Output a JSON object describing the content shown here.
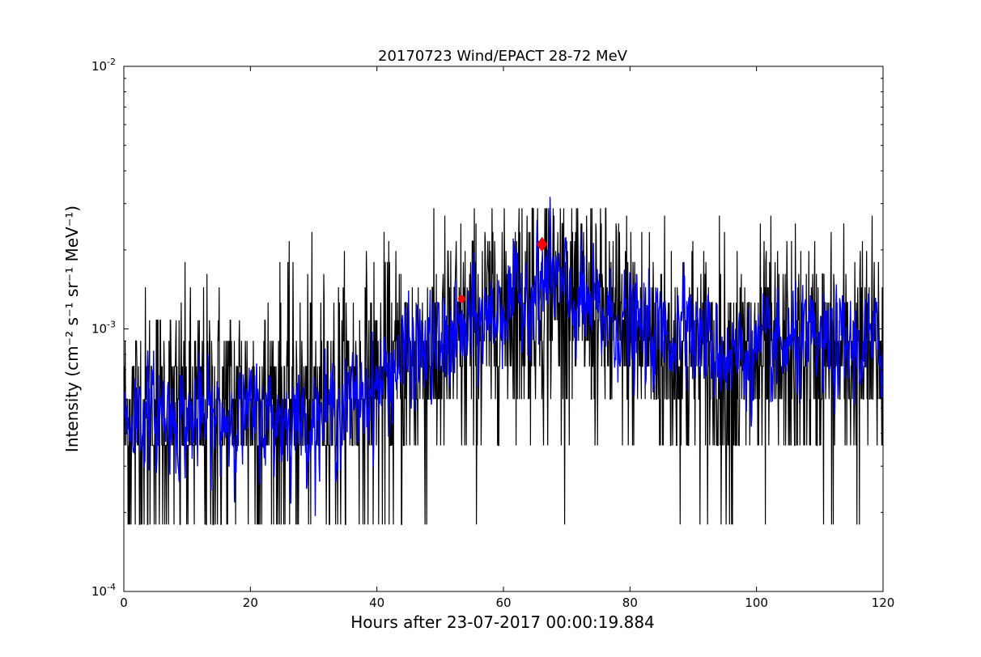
{
  "chart_data": {
    "type": "line",
    "title": "20170723 Wind/EPACT 28-72 MeV",
    "xlabel": "Hours after 23-07-2017 00:00:19.884",
    "ylabel": "Intensity (cm⁻² s⁻¹ sr⁻¹ MeV⁻¹)",
    "xlim": [
      0,
      120
    ],
    "ylim": [
      0.0001,
      0.01
    ],
    "yscale": "log",
    "grid": false,
    "x_ticks": [
      0,
      20,
      40,
      60,
      80,
      100,
      120
    ],
    "x_tick_labels": [
      "0",
      "20",
      "40",
      "60",
      "80",
      "100",
      "120"
    ],
    "y_ticks": [
      0.0001,
      0.001,
      0.01
    ],
    "y_tick_labels": [
      {
        "base": "10",
        "exp": "-4"
      },
      {
        "base": "10",
        "exp": "-3"
      },
      {
        "base": "10",
        "exp": "-2"
      }
    ],
    "series": [
      {
        "color": "#000000",
        "style": "noisy-raw",
        "x": [
          0,
          5,
          10,
          15,
          20,
          25,
          30,
          35,
          40,
          45,
          50,
          55,
          60,
          65,
          70,
          75,
          80,
          85,
          88,
          90,
          95,
          100,
          105,
          110,
          115,
          120
        ],
        "y": [
          0.00045,
          0.00045,
          0.00045,
          0.00048,
          0.0005,
          0.0005,
          0.0005,
          0.00055,
          0.0006,
          0.00072,
          0.0008,
          0.00095,
          0.00115,
          0.0014,
          0.0013,
          0.0011,
          0.00095,
          0.00085,
          0.0008,
          0.00075,
          0.0007,
          0.0007,
          0.00075,
          0.00075,
          0.00075,
          0.00075
        ],
        "floor": 0.00018,
        "discrete_levels": [
          0.00018,
          0.00036,
          0.00054,
          0.00072,
          0.0009,
          0.00108,
          0.00126,
          0.00144,
          0.00162,
          0.0018,
          0.00198,
          0.00216,
          0.00234,
          0.00252,
          0.0027,
          0.00288
        ]
      },
      {
        "color": "#0000ff",
        "style": "smoothed",
        "x": [
          0,
          5,
          10,
          15,
          20,
          25,
          30,
          35,
          40,
          45,
          50,
          55,
          60,
          65,
          66,
          68,
          70,
          75,
          80,
          85,
          88,
          88.3,
          89,
          90,
          95,
          100,
          105,
          110,
          115,
          120
        ],
        "y": [
          0.00045,
          0.00048,
          0.00045,
          0.00045,
          0.00047,
          0.00045,
          0.00045,
          0.0005,
          0.0006,
          0.0008,
          0.00085,
          0.001,
          0.0012,
          0.0014,
          0.0015,
          0.0016,
          0.0013,
          0.00115,
          0.001,
          0.00095,
          0.00095,
          0.0018,
          0.0012,
          0.00095,
          0.0008,
          0.0008,
          0.00085,
          0.00085,
          0.00085,
          0.00085
        ]
      }
    ],
    "markers": [
      {
        "x": 53.4,
        "y": 0.0013,
        "color": "#ff0000",
        "shape": "circle"
      },
      {
        "x": 66.1,
        "y": 0.0021,
        "color": "#ff0000",
        "shape": "diamond"
      }
    ]
  }
}
